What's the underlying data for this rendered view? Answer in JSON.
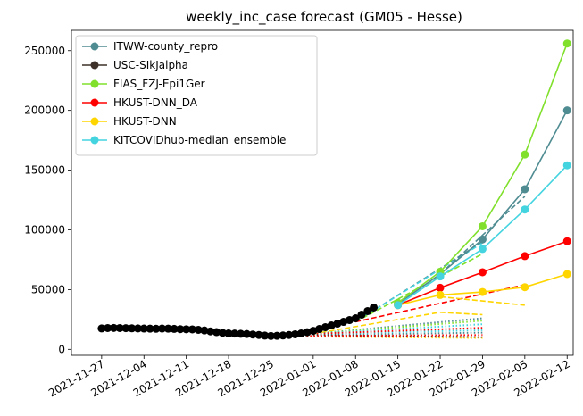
{
  "chart_data": {
    "type": "line",
    "title": "weekly_inc_case forecast (GM05 - Hesse)",
    "xlabel": "",
    "ylabel": "",
    "x_type": "date",
    "xlim": [
      "2021-11-22",
      "2022-02-13"
    ],
    "ylim": [
      -5000,
      267000
    ],
    "x_ticks": [
      "2021-11-27",
      "2021-12-04",
      "2021-12-11",
      "2021-12-18",
      "2021-12-25",
      "2022-01-01",
      "2022-01-08",
      "2022-01-15",
      "2022-01-22",
      "2022-01-29",
      "2022-02-05",
      "2022-02-12"
    ],
    "y_ticks": [
      0,
      50000,
      100000,
      150000,
      200000,
      250000
    ],
    "y_tick_labels": [
      "0",
      "50000",
      "100000",
      "150000",
      "200000",
      "250000"
    ],
    "legend_position": "upper-left",
    "grid": false,
    "observed": {
      "color": "#000000",
      "x": [
        "2021-11-27",
        "2021-11-28",
        "2021-11-29",
        "2021-11-30",
        "2021-12-01",
        "2021-12-02",
        "2021-12-03",
        "2021-12-04",
        "2021-12-05",
        "2021-12-06",
        "2021-12-07",
        "2021-12-08",
        "2021-12-09",
        "2021-12-10",
        "2021-12-11",
        "2021-12-12",
        "2021-12-13",
        "2021-12-14",
        "2021-12-15",
        "2021-12-16",
        "2021-12-17",
        "2021-12-18",
        "2021-12-19",
        "2021-12-20",
        "2021-12-21",
        "2021-12-22",
        "2021-12-23",
        "2021-12-24",
        "2021-12-25",
        "2021-12-26",
        "2021-12-27",
        "2021-12-28",
        "2021-12-29",
        "2021-12-30",
        "2021-12-31",
        "2022-01-01",
        "2022-01-02",
        "2022-01-03",
        "2022-01-04",
        "2022-01-05",
        "2022-01-06",
        "2022-01-07",
        "2022-01-08",
        "2022-01-09",
        "2022-01-10",
        "2022-01-11"
      ],
      "y": [
        17500,
        17800,
        17900,
        17800,
        17700,
        17600,
        17500,
        17400,
        17300,
        17200,
        17400,
        17300,
        17100,
        16900,
        16800,
        16700,
        16300,
        15800,
        15000,
        14400,
        13800,
        13300,
        13200,
        13000,
        12800,
        12400,
        12000,
        11500,
        11200,
        11300,
        11600,
        12000,
        12600,
        13300,
        14300,
        15500,
        17000,
        18500,
        20000,
        21500,
        23000,
        24500,
        26000,
        29000,
        32000,
        35000
      ]
    },
    "series": [
      {
        "name": "ITWW-county_repro",
        "color": "#4f8c92",
        "x": [
          "2022-01-15",
          "2022-01-22",
          "2022-01-29",
          "2022-02-05",
          "2022-02-12"
        ],
        "y": [
          38000,
          63000,
          92000,
          134000,
          200000
        ]
      },
      {
        "name": "USC-SIkJalpha",
        "color": "#3e3129",
        "x": [
          "2022-01-15",
          "2022-01-22",
          "2022-01-29",
          "2022-02-05",
          "2022-02-12"
        ],
        "y": [
          null,
          null,
          null,
          null,
          null
        ]
      },
      {
        "name": "FIAS_FZJ-Epi1Ger",
        "color": "#80e02c",
        "x": [
          "2022-01-15",
          "2022-01-22",
          "2022-01-29",
          "2022-02-05",
          "2022-02-12"
        ],
        "y": [
          39000,
          65000,
          103000,
          163000,
          256000
        ]
      },
      {
        "name": "HKUST-DNN_DA",
        "color": "#ff0000",
        "x": [
          "2022-01-15",
          "2022-01-22",
          "2022-01-29",
          "2022-02-05",
          "2022-02-12"
        ],
        "y": [
          37000,
          51500,
          64500,
          78000,
          90500
        ]
      },
      {
        "name": "HKUST-DNN",
        "color": "#ffd500",
        "x": [
          "2022-01-15",
          "2022-01-22",
          "2022-01-29",
          "2022-02-05",
          "2022-02-12"
        ],
        "y": [
          37000,
          45500,
          48000,
          52000,
          63000
        ]
      },
      {
        "name": "KITCOVIDhub-median_ensemble",
        "color": "#44d4e0",
        "x": [
          "2022-01-15",
          "2022-01-22",
          "2022-01-29",
          "2022-02-05",
          "2022-02-12"
        ],
        "y": [
          37000,
          61000,
          84000,
          117000,
          154000
        ]
      }
    ],
    "past_forecasts": [
      {
        "color": "#4f8c92",
        "dash": "dash",
        "x": [
          "2022-01-08",
          "2022-01-29"
        ],
        "y": [
          23000,
          90000
        ]
      },
      {
        "color": "#44d4e0",
        "dash": "dash",
        "x": [
          "2022-01-08",
          "2022-01-29"
        ],
        "y": [
          23000,
          89000
        ]
      },
      {
        "color": "#80e02c",
        "dash": "dash",
        "x": [
          "2022-01-08",
          "2022-01-29"
        ],
        "y": [
          23000,
          80000
        ]
      },
      {
        "color": "#4f8c92",
        "dash": "dash",
        "x": [
          "2022-01-22",
          "2022-02-05"
        ],
        "y": [
          63000,
          128000
        ]
      },
      {
        "color": "#ff0000",
        "dash": "dash",
        "x": [
          "2022-01-08",
          "2022-02-05"
        ],
        "y": [
          23000,
          54000
        ]
      },
      {
        "color": "#ffd500",
        "dash": "dash",
        "x": [
          "2022-01-01",
          "2022-01-22",
          "2022-01-29"
        ],
        "y": [
          13000,
          31000,
          29000
        ]
      },
      {
        "color": "#ffd500",
        "dash": "dash",
        "x": [
          "2022-01-22",
          "2022-02-05"
        ],
        "y": [
          44000,
          37000
        ]
      },
      {
        "color": "#4f8c92",
        "dash": "dot",
        "x": [
          "2022-01-01",
          "2022-01-29"
        ],
        "y": [
          13000,
          26000
        ]
      },
      {
        "color": "#80e02c",
        "dash": "dot",
        "x": [
          "2022-01-01",
          "2022-01-29"
        ],
        "y": [
          13000,
          24000
        ]
      },
      {
        "color": "#44d4e0",
        "dash": "dot",
        "x": [
          "2022-01-01",
          "2022-01-29"
        ],
        "y": [
          13000,
          21000
        ]
      },
      {
        "color": "#44d4e0",
        "dash": "dot",
        "x": [
          "2022-01-01",
          "2022-01-29"
        ],
        "y": [
          13000,
          16000
        ]
      },
      {
        "color": "#ff0000",
        "dash": "dot",
        "x": [
          "2022-01-01",
          "2022-01-29"
        ],
        "y": [
          13000,
          18000
        ]
      },
      {
        "color": "#4f8c92",
        "dash": "dot",
        "x": [
          "2022-01-01",
          "2022-01-29"
        ],
        "y": [
          12000,
          14000
        ]
      },
      {
        "color": "#3e3129",
        "dash": "dot",
        "x": [
          "2022-01-01",
          "2022-01-29"
        ],
        "y": [
          12000,
          10000
        ]
      },
      {
        "color": "#ffd500",
        "dash": "dot",
        "x": [
          "2021-12-25",
          "2022-01-29"
        ],
        "y": [
          11000,
          9500
        ]
      },
      {
        "color": "#ff0000",
        "dash": "dot",
        "x": [
          "2021-12-25",
          "2022-01-29"
        ],
        "y": [
          11000,
          12000
        ]
      }
    ]
  }
}
